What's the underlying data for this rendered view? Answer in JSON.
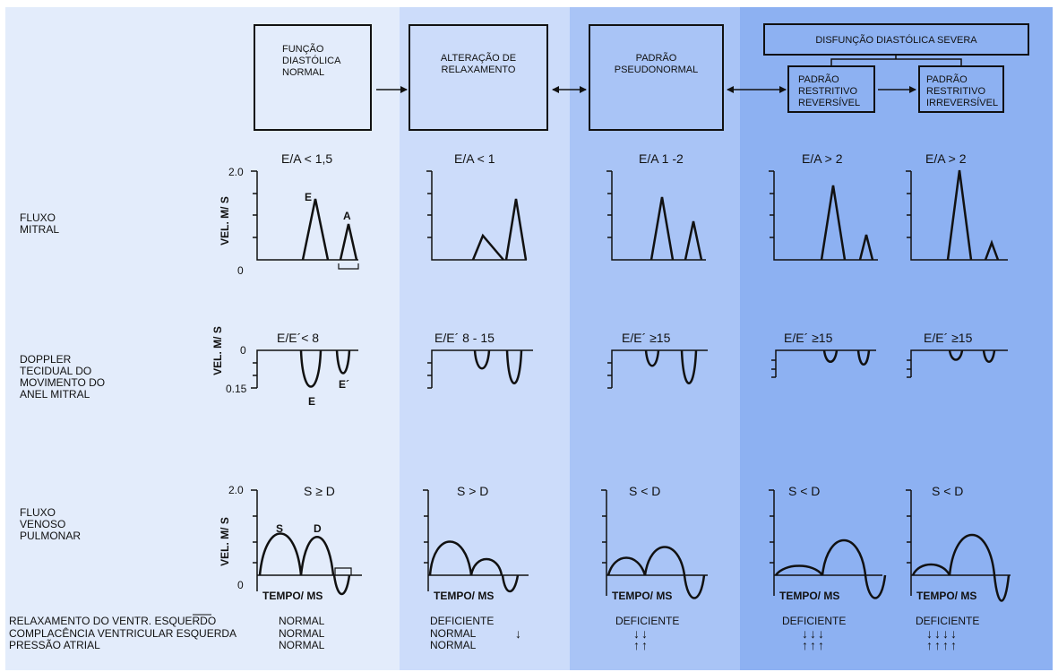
{
  "boxes": {
    "normal": "FUNÇÃO\nDIASTÓLICA\nNORMAL",
    "relax": "ALTERAÇÃO DE\nRELAXAMENTO",
    "pseudo": "PADRÃO\nPSEUDONORMAL",
    "severe": "DISFUNÇÃO DIASTÓLICA SEVERA",
    "rev": "PADRÃO\nRESTRITIVO\nREVERSÍVEL",
    "irrev": "PADRÃO\nRESTRITIVO\nIRREVERSÍVEL"
  },
  "rows": {
    "mitral": "FLUXO\nMITRAL",
    "tdi": "DOPPLER\nTECIDUAL DO\nMOVIMENTO DO\nANEL MITRAL",
    "pv": "FLUXO\nVENOSO\nPULMONAR"
  },
  "ratios": {
    "ea": [
      "E/A < 1,5",
      "E/A < 1",
      "E/A 1 -2",
      "E/A > 2",
      "E/A > 2"
    ],
    "ee": [
      "E/E´< 8",
      "E/E´ 8 - 15",
      "E/E´ ≥15",
      "E/E´ ≥15",
      "E/E´ ≥15"
    ],
    "sd": [
      "S ≥ D",
      "S > D",
      "S < D",
      "S < D",
      "S < D"
    ]
  },
  "axes": {
    "vel_ms": "VEL. M/ S",
    "mitral_top": "2.0",
    "mitral_zero": "0",
    "tdi_zero": "0",
    "tdi_bottom": "0.15",
    "pv_top": "2.0",
    "pv_zero": "0",
    "time": "TEMPO/ MS"
  },
  "wave_labels": {
    "E": "E",
    "A": "A",
    "E_tdi": "E",
    "Eprime": "E´",
    "S": "S",
    "D": "D"
  },
  "bottom": {
    "labels": "RELAXAMENTO DO VENTR. ESQUERDO\nCOMPLACÊNCIA VENTRICULAR ESQUERDA\nPRESSÃO ATRIAL",
    "col1": "NORMAL\nNORMAL\nNORMAL",
    "col2": "DEFICIENTE\nNORMAL\nNORMAL",
    "col2_arrow": "↓",
    "col3_title": "DEFICIENTE",
    "col3_arrows": "↓↓\n↑↑",
    "col4_title": "DEFICIENTE",
    "col4_arrows": "↓↓↓\n↑↑↑",
    "col5_title": "DEFICIENTE",
    "col5_arrows": "↓↓↓↓\n↑↑↑↑"
  },
  "colors": {
    "col1": "#e3ecfb",
    "col2": "#ccdcfa",
    "col3": "#a8c4f6",
    "col4": "#8db1f2",
    "edge": "#9fbdf3"
  }
}
